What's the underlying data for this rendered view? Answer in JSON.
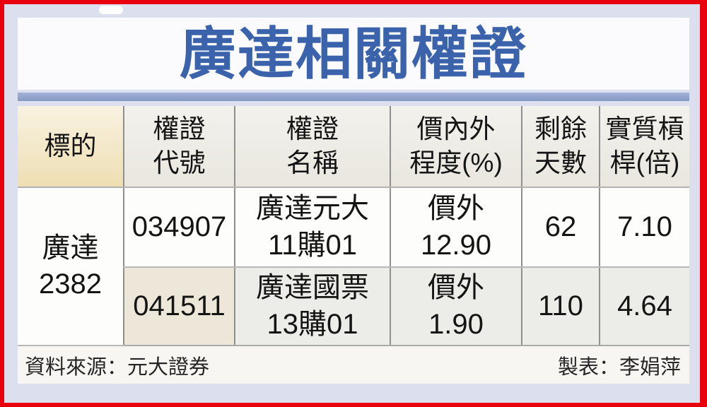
{
  "page": {
    "title": "廣達相關權證",
    "accent_text_blue": "#3a63ac",
    "bar_blue": "#8ca0cb",
    "frame_red": "#e8000d",
    "background_lavender": "#dcdfee"
  },
  "table": {
    "headers": [
      "標的",
      "權證\n代號",
      "權證\n名稱",
      "價內外\n程度(%)",
      "剩餘\n天數",
      "實質槓\n桿(倍)"
    ],
    "underlying": "廣達\n2382",
    "rows": [
      {
        "code": "034907",
        "name": "廣達元大\n11購01",
        "moneyness": "價外\n12.90",
        "days_left": "62",
        "leverage": "7.10"
      },
      {
        "code": "041511",
        "name": "廣達國票\n13購01",
        "moneyness": "價外\n1.90",
        "days_left": "110",
        "leverage": "4.64"
      }
    ]
  },
  "footer": {
    "source": "資料來源：元大證券",
    "credit": "製表：李娟萍"
  },
  "chart_data": {
    "type": "table",
    "title": "廣達相關權證",
    "columns": [
      "標的",
      "權證代號",
      "權證名稱",
      "價內外程度(%)",
      "剩餘天數",
      "實質槓桿(倍)"
    ],
    "rows": [
      [
        "廣達 2382",
        "034907",
        "廣達元大11購01",
        "價外 12.90",
        62,
        7.1
      ],
      [
        "廣達 2382",
        "041511",
        "廣達國票13購01",
        "價外 1.90",
        110,
        4.64
      ]
    ],
    "source": "資料來源：元大證券",
    "credit": "製表：李娟萍"
  }
}
